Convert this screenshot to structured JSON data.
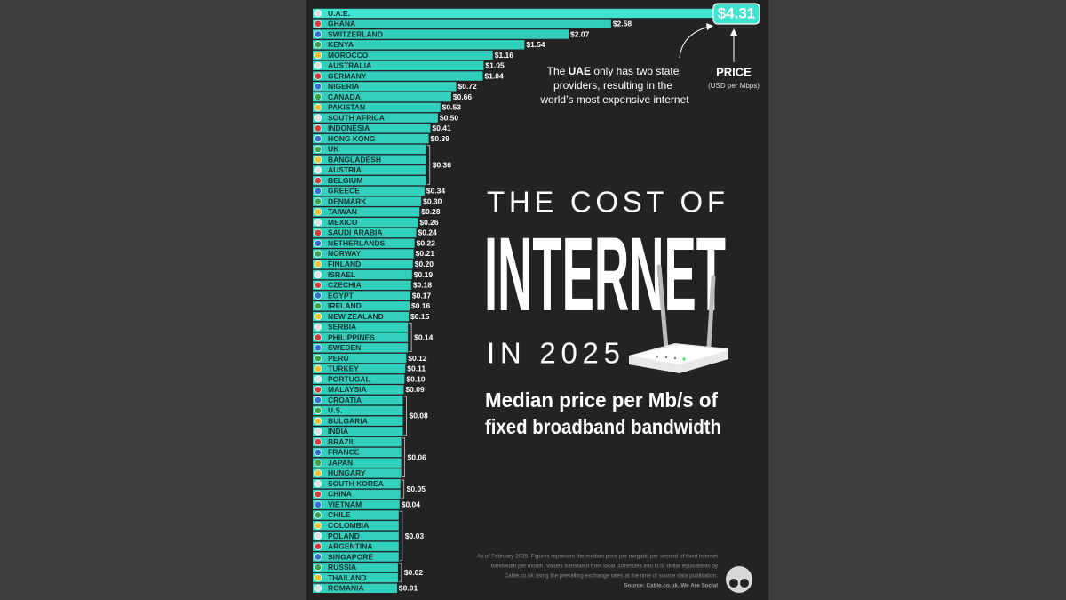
{
  "chart_data": {
    "type": "bar",
    "orientation": "horizontal",
    "title": [
      "THE COST OF",
      "INTERNET",
      "IN 2025"
    ],
    "subtitle": [
      "Median price per Mb/s of",
      "fixed broadband bandwidth"
    ],
    "value_axis_label": "PRICE",
    "value_axis_unit": "(USD per Mbps)",
    "annotation": [
      "The",
      "UAE",
      "only has two state",
      "providers, resulting in the",
      "world’s most expensive internet"
    ],
    "footnote": [
      "As of February 2025. Figures represent the median price per megabit per second of fixed internet",
      "bandwidth per month. Values translated from local currencies into U.S. dollar equivalents by",
      "Cable.co.uk using the prevailing exchange rates at the time of source data publication."
    ],
    "source": "Source: Cable.co.uk, We Are Social",
    "color": "#33cfbd",
    "highlight_color": "#3fe3cf",
    "categories": [
      "U.A.E.",
      "GHANA",
      "SWITZERLAND",
      "KENYA",
      "MOROCCO",
      "AUSTRALIA",
      "GERMANY",
      "NIGERIA",
      "CANADA",
      "PAKISTAN",
      "SOUTH AFRICA",
      "INDONESIA",
      "HONG KONG",
      "UK",
      "BANGLADESH",
      "AUSTRIA",
      "BELGIUM",
      "GREECE",
      "DENMARK",
      "TAIWAN",
      "MEXICO",
      "SAUDI ARABIA",
      "NETHERLANDS",
      "NORWAY",
      "FINLAND",
      "ISRAEL",
      "CZECHIA",
      "EGYPT",
      "IRELAND",
      "NEW ZEALAND",
      "SERBIA",
      "PHILIPPINES",
      "SWEDEN",
      "PERU",
      "TURKEY",
      "PORTUGAL",
      "MALAYSIA",
      "CROATIA",
      "U.S.",
      "BULGARIA",
      "INDIA",
      "BRAZIL",
      "FRANCE",
      "JAPAN",
      "HUNGARY",
      "SOUTH KOREA",
      "CHINA",
      "VIETNAM",
      "CHILE",
      "COLOMBIA",
      "POLAND",
      "ARGENTINA",
      "SINGAPORE",
      "RUSSIA",
      "THAILAND",
      "ROMANIA"
    ],
    "values": [
      4.31,
      2.58,
      2.07,
      1.54,
      1.16,
      1.05,
      1.04,
      0.72,
      0.66,
      0.53,
      0.5,
      0.41,
      0.39,
      0.36,
      0.36,
      0.36,
      0.36,
      0.34,
      0.3,
      0.28,
      0.26,
      0.24,
      0.22,
      0.21,
      0.2,
      0.19,
      0.18,
      0.17,
      0.16,
      0.15,
      0.14,
      0.14,
      0.14,
      0.12,
      0.11,
      0.1,
      0.09,
      0.08,
      0.08,
      0.08,
      0.08,
      0.06,
      0.06,
      0.06,
      0.06,
      0.05,
      0.05,
      0.04,
      0.03,
      0.03,
      0.03,
      0.03,
      0.03,
      0.02,
      0.02,
      0.01
    ],
    "value_labels": [
      "$4.31",
      "$2.58",
      "$2.07",
      "$1.54",
      "$1.16",
      "$1.05",
      "$1.04",
      "$0.72",
      "$0.66",
      "$0.53",
      "$0.50",
      "$0.41",
      "$0.39",
      null,
      "$0.36",
      null,
      null,
      "$0.34",
      "$0.30",
      "$0.28",
      "$0.26",
      "$0.24",
      "$0.22",
      "$0.21",
      "$0.20",
      "$0.19",
      "$0.18",
      "$0.17",
      "$0.16",
      "$0.15",
      null,
      "$0.14",
      null,
      "$0.12",
      "$0.11",
      "$0.10",
      "$0.09",
      null,
      null,
      "$0.08",
      null,
      null,
      null,
      "$0.06",
      null,
      "$0.05",
      null,
      "$0.04",
      null,
      null,
      "$0.03",
      null,
      null,
      null,
      "$0.02",
      "$0.01"
    ]
  }
}
